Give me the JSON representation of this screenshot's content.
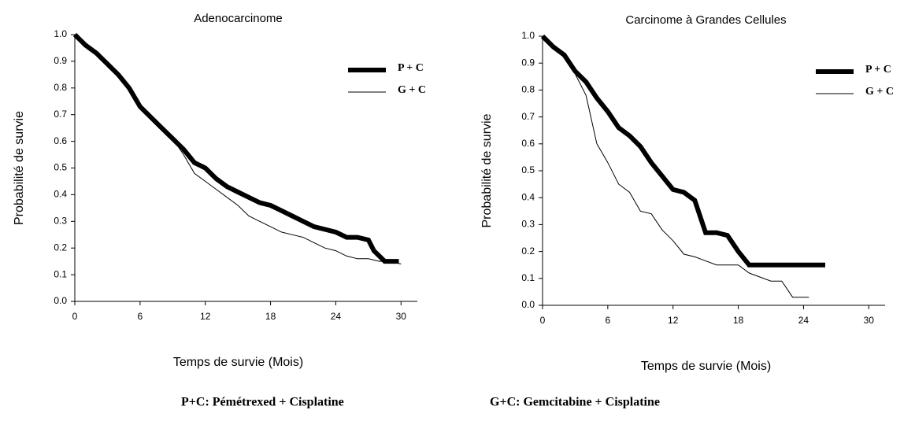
{
  "chart_data": [
    {
      "type": "line",
      "title": "Adenocarcinome",
      "xlabel": "Temps de survie (Mois)",
      "ylabel": "Probabilité de survie",
      "xlim": [
        0,
        31.5
      ],
      "ylim": [
        0,
        1
      ],
      "xticks": [
        0,
        6,
        12,
        18,
        24,
        30
      ],
      "yticks": [
        {
          "value": 0,
          "label": "0.0"
        },
        0.1,
        0.2,
        0.3,
        0.4,
        0.5,
        0.6,
        0.7,
        0.8,
        0.9,
        {
          "value": 1,
          "label": "1.0"
        }
      ],
      "legend": "top-right",
      "series": [
        {
          "name": "P + C",
          "color": "#000000",
          "x": [
            0,
            1,
            2,
            3,
            4,
            5,
            6,
            7,
            8,
            9,
            10,
            11,
            12,
            13,
            14,
            15,
            16,
            17,
            18,
            19,
            20,
            21,
            22,
            23,
            24,
            25,
            26,
            27,
            27.5,
            28.5,
            29.8
          ],
          "values": [
            1.0,
            0.96,
            0.93,
            0.89,
            0.85,
            0.8,
            0.73,
            0.69,
            0.65,
            0.61,
            0.57,
            0.52,
            0.5,
            0.46,
            0.43,
            0.41,
            0.39,
            0.37,
            0.36,
            0.34,
            0.32,
            0.3,
            0.28,
            0.27,
            0.26,
            0.24,
            0.24,
            0.23,
            0.19,
            0.15,
            0.15
          ]
        },
        {
          "name": "G + C",
          "color": "#000000",
          "x": [
            0,
            1,
            2,
            3,
            4,
            5,
            6,
            7,
            8,
            9,
            10,
            11,
            12,
            13,
            14,
            15,
            16,
            17,
            18,
            19,
            20,
            21,
            22,
            23,
            24,
            25,
            26,
            27,
            28,
            29,
            30
          ],
          "values": [
            1.0,
            0.97,
            0.93,
            0.88,
            0.84,
            0.79,
            0.73,
            0.69,
            0.65,
            0.61,
            0.55,
            0.48,
            0.45,
            0.42,
            0.39,
            0.36,
            0.32,
            0.3,
            0.28,
            0.26,
            0.25,
            0.24,
            0.22,
            0.2,
            0.19,
            0.17,
            0.16,
            0.16,
            0.15,
            0.15,
            0.14
          ]
        }
      ]
    },
    {
      "type": "line",
      "title": "Carcinome à Grandes Cellules",
      "xlabel": "Temps de survie (Mois)",
      "ylabel": "Probabilité de survie",
      "xlim": [
        0,
        31.5
      ],
      "ylim": [
        0,
        1
      ],
      "xticks": [
        0,
        6,
        12,
        18,
        24,
        30
      ],
      "yticks": [
        {
          "value": 0,
          "label": "0.0"
        },
        0.1,
        0.2,
        0.3,
        0.4,
        0.5,
        0.6,
        0.7,
        0.8,
        0.9,
        {
          "value": 1,
          "label": "1.0"
        }
      ],
      "legend": "top-right",
      "series": [
        {
          "name": "P + C",
          "color": "#000000",
          "x": [
            0,
            1,
            2,
            3,
            4,
            5,
            6,
            7,
            8,
            9,
            10,
            11,
            12,
            13,
            14,
            15,
            16,
            17,
            18,
            19,
            22,
            26
          ],
          "values": [
            1.0,
            0.96,
            0.93,
            0.87,
            0.83,
            0.77,
            0.72,
            0.66,
            0.63,
            0.59,
            0.53,
            0.48,
            0.43,
            0.42,
            0.39,
            0.27,
            0.27,
            0.26,
            0.2,
            0.15,
            0.15,
            0.15
          ]
        },
        {
          "name": "G + C",
          "color": "#000000",
          "x": [
            0,
            1,
            2,
            3,
            4,
            5,
            6,
            7,
            8,
            9,
            10,
            11,
            12,
            13,
            14,
            16,
            18,
            19,
            21,
            22,
            23,
            24.5
          ],
          "values": [
            1.0,
            0.96,
            0.92,
            0.86,
            0.78,
            0.6,
            0.53,
            0.45,
            0.42,
            0.35,
            0.34,
            0.28,
            0.24,
            0.19,
            0.18,
            0.15,
            0.15,
            0.12,
            0.09,
            0.09,
            0.03,
            0.03
          ]
        }
      ]
    }
  ],
  "footnotes": [
    "P+C: Pémétrexed + Cisplatine",
    "G+C: Gemcitabine + Cisplatine"
  ]
}
